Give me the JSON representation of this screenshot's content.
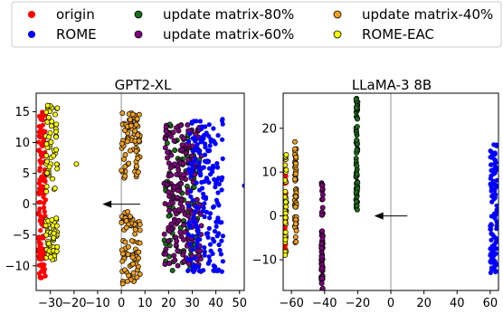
{
  "legend": {
    "placement": "top",
    "entries": [
      {
        "label": "origin",
        "color": "#ff0000"
      },
      {
        "label": "update matrix-80%",
        "color": "#1a6e1a"
      },
      {
        "label": "update matrix-40%",
        "color": "#f0a020"
      },
      {
        "label": "ROME",
        "color": "#0000ff"
      },
      {
        "label": "update matrix-60%",
        "color": "#800080"
      },
      {
        "label": "ROME-EAC",
        "color": "#ffff00"
      }
    ]
  },
  "chart_data": [
    {
      "type": "scatter",
      "title": "GPT2-XL",
      "xlabel": "",
      "ylabel": "",
      "xlim": [
        -36,
        52
      ],
      "ylim": [
        -14,
        18
      ],
      "xticks": [
        "−30",
        "−20",
        "−10",
        "0",
        "10",
        "20",
        "30",
        "40",
        "50"
      ],
      "xtick_values": [
        -30,
        -20,
        -10,
        0,
        10,
        20,
        30,
        40,
        50
      ],
      "yticks": [
        "−10",
        "−5",
        "0",
        "5",
        "10",
        "15"
      ],
      "ytick_values": [
        -10,
        -5,
        0,
        5,
        10,
        15
      ],
      "grid": false,
      "vline_x": 0,
      "arrow": {
        "from": [
          8,
          0
        ],
        "to": [
          -8,
          0
        ]
      },
      "series": [
        {
          "name": "origin",
          "color": "#ff0000",
          "edge": false,
          "x_range": [
            -35,
            -32
          ],
          "y_ranges": [
            [
              -12,
              15
            ]
          ],
          "count": 130
        },
        {
          "name": "ROME-EAC",
          "color": "#ffff00",
          "edge": true,
          "x_range": [
            -32,
            -27
          ],
          "y_ranges": [
            [
              -9,
              -2
            ],
            [
              2,
              16
            ]
          ],
          "count": 110,
          "extra": [
            [
              -19,
              6.5
            ]
          ]
        },
        {
          "name": "update matrix-40%",
          "color": "#f0a020",
          "edge": true,
          "x_range": [
            0,
            8
          ],
          "y_ranges": [
            [
              -13,
              -1
            ],
            [
              4,
              15
            ]
          ],
          "count": 150
        },
        {
          "name": "update matrix-80%",
          "color": "#1a6e1a",
          "edge": true,
          "x_range": [
            18,
            33
          ],
          "y_ranges": [
            [
              -11,
              13
            ]
          ],
          "count": 90
        },
        {
          "name": "update matrix-60%",
          "color": "#800080",
          "edge": true,
          "x_range": [
            18,
            34
          ],
          "y_ranges": [
            [
              -11,
              13
            ]
          ],
          "count": 210
        },
        {
          "name": "ROME",
          "color": "#0000ff",
          "edge": false,
          "x_range": [
            28,
            43
          ],
          "y_ranges": [
            [
              -11,
              14
            ]
          ],
          "count": 190,
          "extra": [
            [
              52,
              3
            ]
          ]
        }
      ]
    },
    {
      "type": "scatter",
      "title": "LLaMA-3 8B",
      "xlabel": "",
      "ylabel": "",
      "xlim": [
        -65,
        65
      ],
      "ylim": [
        -17,
        28
      ],
      "xticks": [
        "−60",
        "−40",
        "−20",
        "0",
        "20",
        "40",
        "60"
      ],
      "xtick_values": [
        -60,
        -40,
        -20,
        0,
        20,
        40,
        60
      ],
      "yticks": [
        "−10",
        "0",
        "10",
        "20"
      ],
      "ytick_values": [
        -10,
        0,
        10,
        20
      ],
      "grid": false,
      "vline_x": 0,
      "arrow": {
        "from": [
          10,
          0
        ],
        "to": [
          -10,
          0
        ]
      },
      "series": [
        {
          "name": "origin",
          "color": "#ff0000",
          "edge": false,
          "x_range": [
            -64,
            -63
          ],
          "y_ranges": [
            [
              -8,
              14
            ]
          ],
          "count": 25
        },
        {
          "name": "ROME-EAC",
          "color": "#ffff00",
          "edge": true,
          "x_range": [
            -64,
            -63
          ],
          "y_ranges": [
            [
              -9,
              14
            ]
          ],
          "count": 40
        },
        {
          "name": "update matrix-40%",
          "color": "#f0a020",
          "edge": true,
          "x_range": [
            -58,
            -57
          ],
          "y_ranges": [
            [
              -7,
              17
            ]
          ],
          "count": 55
        },
        {
          "name": "update matrix-60%",
          "color": "#800080",
          "edge": true,
          "x_range": [
            -42,
            -41
          ],
          "y_ranges": [
            [
              -17,
              8
            ]
          ],
          "count": 75
        },
        {
          "name": "update matrix-80%",
          "color": "#1a6e1a",
          "edge": true,
          "x_range": [
            -21,
            -20
          ],
          "y_ranges": [
            [
              1,
              27
            ]
          ],
          "count": 75
        },
        {
          "name": "ROME",
          "color": "#0000ff",
          "edge": false,
          "x_range": [
            60,
            64
          ],
          "y_ranges": [
            [
              -13,
              17
            ]
          ],
          "count": 120
        }
      ]
    }
  ]
}
